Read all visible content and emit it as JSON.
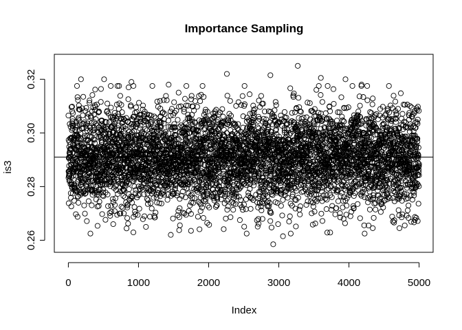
{
  "chart_data": {
    "type": "scatter",
    "title": "Importance Sampling",
    "xlabel": "Index",
    "ylabel": "is3",
    "xlim": [
      -200,
      5200
    ],
    "ylim": [
      0.2555,
      0.3293
    ],
    "x_ticks": [
      0,
      1000,
      2000,
      3000,
      4000,
      5000
    ],
    "x_tick_labels": [
      "0",
      "1000",
      "2000",
      "3000",
      "4000",
      "5000"
    ],
    "y_ticks": [
      0.26,
      0.28,
      0.3,
      0.32
    ],
    "y_tick_labels": [
      "0.26",
      "0.28",
      "0.30",
      "0.32"
    ],
    "n_points": 5000,
    "marker": "open-circle",
    "point_color": "#000000",
    "y_center": 0.291,
    "y_spread_sd": 0.0095,
    "hline": 0.291,
    "notable_points": [
      {
        "x": 3270,
        "y": 0.325
      },
      {
        "x": 2260,
        "y": 0.322
      },
      {
        "x": 2880,
        "y": 0.3215
      },
      {
        "x": 3600,
        "y": 0.3205
      },
      {
        "x": 180,
        "y": 0.32
      },
      {
        "x": 510,
        "y": 0.32
      },
      {
        "x": 3950,
        "y": 0.32
      },
      {
        "x": 900,
        "y": 0.319
      },
      {
        "x": 1430,
        "y": 0.318
      },
      {
        "x": 4180,
        "y": 0.318
      },
      {
        "x": 2920,
        "y": 0.2585
      },
      {
        "x": 3060,
        "y": 0.2615
      },
      {
        "x": 1460,
        "y": 0.262
      },
      {
        "x": 4340,
        "y": 0.2645
      },
      {
        "x": 4720,
        "y": 0.2645
      },
      {
        "x": 4280,
        "y": 0.2655
      },
      {
        "x": 640,
        "y": 0.266
      },
      {
        "x": 2990,
        "y": 0.266
      }
    ],
    "grid": false,
    "legend": "none"
  }
}
